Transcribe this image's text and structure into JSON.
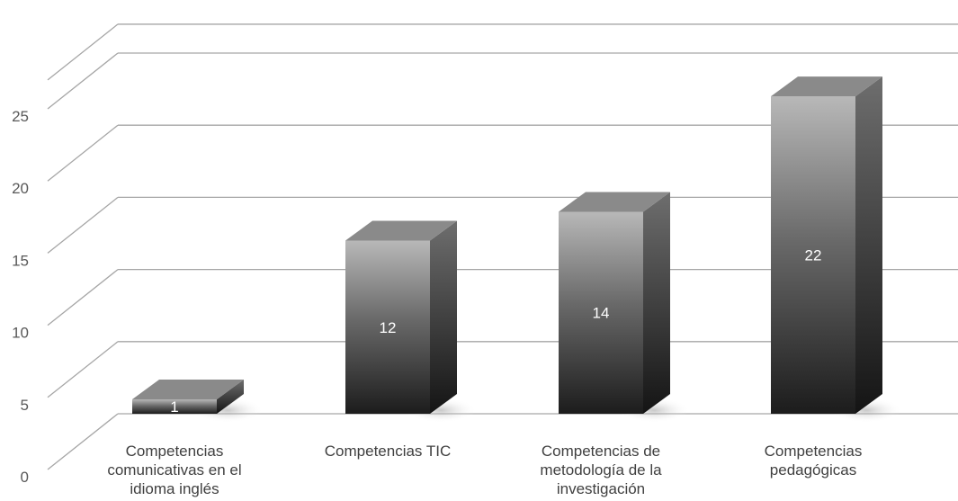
{
  "chart_data": {
    "type": "bar",
    "style": "3d-column",
    "categories": [
      [
        "Competencias",
        "comunicativas en el",
        "idioma inglés"
      ],
      [
        "Competencias TIC"
      ],
      [
        "Competencias de",
        "metodología de la",
        "investigación"
      ],
      [
        "Competencias",
        "pedagógicas"
      ]
    ],
    "values": [
      1,
      12,
      14,
      22
    ],
    "data_labels": [
      "1",
      "12",
      "14",
      "22"
    ],
    "y_ticks": [
      "0",
      "5",
      "10",
      "15",
      "20",
      "25"
    ],
    "ylim": [
      0,
      27
    ],
    "grid": true,
    "legend": "none",
    "colors": {
      "grid": "#a6a6a6",
      "tick_text": "#595959",
      "category_text": "#404040",
      "bar_top_light": "#b8b8b8",
      "bar_bottom_dark": "#1c1c1c",
      "bar_roof": "#8a8a8a",
      "bar_side_top": "#6e6e6e",
      "bar_side_bottom": "#141414",
      "label": "#ffffff"
    }
  }
}
